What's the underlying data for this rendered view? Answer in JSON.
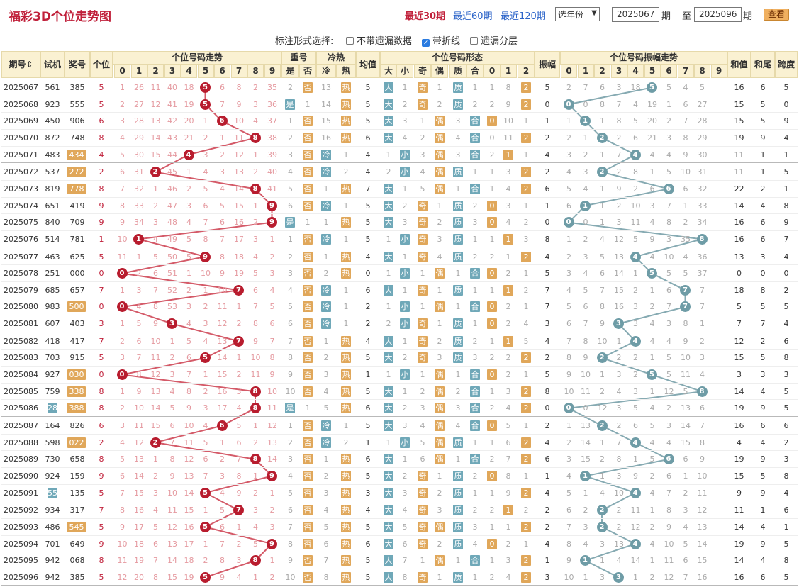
{
  "header": {
    "title": "福彩3D个位走势图",
    "links": [
      "最近30期",
      "最近60期",
      "最近120期"
    ],
    "year_select": "选年份",
    "from_issue": "2025067",
    "to_issue": "2025096",
    "qi": "期",
    "zhi": "至",
    "query_button": "查看"
  },
  "options": {
    "label": "标注形式选择:",
    "items": [
      "不带遗漏数据",
      "带折线",
      "遗漏分层"
    ],
    "checked": [
      false,
      true,
      false
    ]
  },
  "columns": {
    "issue": "期号",
    "trial": "试机",
    "prize": "奖号",
    "unit": "个位",
    "trend": "个位号码走势",
    "repeat": "重号",
    "repeat_sub": [
      "是",
      "否"
    ],
    "hotcold": "冷热",
    "hotcold_sub": [
      "冷",
      "热"
    ],
    "avg": "均值",
    "form": "个位号码形态",
    "form_sub": [
      "大",
      "小",
      "奇",
      "偶",
      "质",
      "合",
      "0",
      "1",
      "2"
    ],
    "amp": "振幅",
    "amp_trend": "个位号码振幅走势",
    "sum": "和值",
    "tail": "和尾",
    "span": "跨度",
    "digits": [
      "0",
      "1",
      "2",
      "3",
      "4",
      "5",
      "6",
      "7",
      "8",
      "9"
    ]
  },
  "rows": [
    [
      "2025067",
      "561",
      "385",
      5,
      "1 26 11 40 18 5 6 8 2 35",
      "2 否",
      "13 热",
      "5",
      "大 1 奇 1 质 1 1 8 2",
      "5",
      "2 7 6 3 18 5 4 5 26 1",
      "16",
      "6",
      "5",
      0,
      0
    ],
    [
      "2025068",
      "923",
      "555",
      5,
      "2 27 12 41 19 5 7 9 3 36",
      "是 1",
      "14 热",
      "5",
      "大 2 奇 2 质 2 2 9 2",
      "0",
      "0 8 7 4 19 1 6 27 2",
      "15",
      "5",
      "0",
      0,
      0
    ],
    [
      "2025069",
      "450",
      "906",
      6,
      "3 28 13 42 20 1 6 10 4 37",
      "1 否",
      "15 热",
      "5",
      "大 3 1 偶 3 合 0 10 1",
      "1",
      "1 1 8 5 20 2 7 28 3",
      "15",
      "5",
      "9",
      0,
      0
    ],
    [
      "2025070",
      "872",
      "748",
      8,
      "4 29 14 43 21 2 1 11 8 38",
      "2 否",
      "16 热",
      "6",
      "大 4 2 偶 4 合 0 11 2",
      "2",
      "2 1 2 6 21 3 8 29 4",
      "19",
      "9",
      "4",
      0,
      0
    ],
    [
      "2025071",
      "483",
      "434",
      4,
      "5 30 15 44 4 3 2 12 1 39",
      "3 否",
      "冷 1",
      "4",
      "1 小 3 偶 3 合 2 1 1",
      "4",
      "3 2 1 7 4 4 9 30 5",
      "11",
      "1",
      "1",
      2,
      0
    ],
    [
      "2025072",
      "537",
      "272",
      2,
      "6 31 2 45 1 4 3 13 2 40",
      "4 否",
      "冷 2",
      "4",
      "2 小 4 偶 质 1 1 3 2",
      "2",
      "4 3 2 8 1 5 10 31 6",
      "11",
      "1",
      "5",
      2,
      0
    ],
    [
      "2025073",
      "819",
      "778",
      8,
      "7 32 1 46 2 5 4 14 8 41",
      "5 否",
      "1 热",
      "7",
      "大 1 5 偶 1 合 1 4 2",
      "6",
      "5 4 1 9 2 6 6 32 7",
      "22",
      "2",
      "1",
      2,
      0
    ],
    [
      "2025074",
      "651",
      "419",
      9,
      "8 33 2 47 3 6 5 15 1 9",
      "6 否",
      "冷 1",
      "5",
      "大 2 奇 1 质 2 0 3 1",
      "1",
      "6 1 2 10 3 7 1 33 8",
      "14",
      "4",
      "8",
      0,
      0
    ],
    [
      "2025075",
      "840",
      "709",
      9,
      "9 34 3 48 4 7 6 16 2 9",
      "是 1",
      "1 热",
      "5",
      "大 3 奇 2 质 3 0 4 2",
      "0",
      "0 1 3 11 4 8 2 34 9",
      "16",
      "6",
      "9",
      0,
      0
    ],
    [
      "2025076",
      "514",
      "781",
      1,
      "10 1 4 49 5 8 7 17 3 1",
      "1 否",
      "冷 1",
      "5",
      "1 小 奇 3 质 1 1 1 3",
      "8",
      "1 2 4 12 5 9 3 35 8",
      "16",
      "6",
      "7",
      0,
      0
    ],
    [
      "2025077",
      "463",
      "625",
      5,
      "11 1 5 50 5 9 8 18 4 2",
      "2 否",
      "1 热",
      "4",
      "大 1 奇 4 质 2 2 1 2",
      "4",
      "2 3 5 13 4 10 4 36 1",
      "13",
      "3",
      "4",
      0,
      0
    ],
    [
      "2025078",
      "251",
      "000",
      0,
      "0 2 6 51 1 10 9 19 5 3",
      "3 否",
      "2 热",
      "0",
      "1 小 1 偶 1 合 0 2 1",
      "5",
      "3 4 6 14 1 5 5 37 2",
      "0",
      "0",
      "0",
      0,
      0
    ],
    [
      "2025079",
      "685",
      "657",
      7,
      "1 3 7 52 2 1 10 7 6 4",
      "4 否",
      "冷 1",
      "6",
      "大 1 奇 1 质 1 1 1 2",
      "7",
      "4 5 7 15 2 1 6 7 3",
      "18",
      "8",
      "2",
      0,
      0
    ],
    [
      "2025080",
      "983",
      "500",
      0,
      "0 4 8 53 3 2 11 1 7 5",
      "5 否",
      "冷 1",
      "2",
      "1 小 1 偶 1 合 0 2 1",
      "7",
      "5 6 8 16 3 2 7 7 4",
      "5",
      "5",
      "5",
      2,
      0
    ],
    [
      "2025081",
      "607",
      "403",
      3,
      "1 5 9 3 4 3 12 2 8 6",
      "6 否",
      "冷 1",
      "2",
      "2 小 奇 1 质 1 0 2 4",
      "3",
      "6 7 9 3 4 3 8 1 5",
      "7",
      "7",
      "4",
      0,
      0
    ],
    [
      "2025082",
      "418",
      "417",
      7,
      "2 6 10 1 5 4 13 7 9 7",
      "7 否",
      "1 热",
      "4",
      "大 1 奇 2 质 2 1 1 5",
      "4",
      "7 8 10 1 4 4 9 2 6",
      "12",
      "2",
      "6",
      0,
      0
    ],
    [
      "2025083",
      "703",
      "915",
      5,
      "3 7 11 2 6 5 14 1 10 8",
      "8 否",
      "2 热",
      "5",
      "大 2 奇 3 质 3 2 2 2",
      "2",
      "8 9 2 2 1 5 10 3 7",
      "15",
      "5",
      "8",
      0,
      0
    ],
    [
      "2025084",
      "927",
      "030",
      0,
      "0 8 12 3 7 1 15 2 11 9",
      "9 否",
      "3 热",
      "1",
      "1 小 1 偶 1 合 0 2 1",
      "5",
      "9 10 1 3 2 5 11 4 8",
      "3",
      "3",
      "3",
      2,
      0
    ],
    [
      "2025085",
      "759",
      "338",
      8,
      "1 9 13 4 8 2 16 3 8 10",
      "10 否",
      "4 热",
      "5",
      "大 1 2 偶 2 合 1 3 2",
      "8",
      "10 11 2 4 3 1 12 5 8",
      "14",
      "4",
      "5",
      2,
      0
    ],
    [
      "2025086",
      "288",
      "388",
      8,
      "2 10 14 5 9 3 17 4 8 11",
      "是 1",
      "5 热",
      "6",
      "大 2 3 偶 3 合 2 4 2",
      "0",
      "0 12 3 5 4 2 13 6 1",
      "19",
      "9",
      "5",
      2,
      1
    ],
    [
      "2025087",
      "164",
      "826",
      6,
      "3 11 15 6 10 4 6 5 1 12",
      "1 否",
      "冷 1",
      "5",
      "大 3 4 偶 4 合 0 5 1",
      "2",
      "1 13 2 6 5 3 14 7 2",
      "16",
      "6",
      "6",
      0,
      0
    ],
    [
      "2025088",
      "598",
      "022",
      2,
      "4 12 2 7 11 5 1 6 2 13",
      "2 否",
      "冷 2",
      "1",
      "1 小 5 偶 质 1 1 6 2",
      "4",
      "2 14 1 7 4 4 15 8 3",
      "4",
      "4",
      "2",
      2,
      0
    ],
    [
      "2025089",
      "730",
      "658",
      8,
      "5 13 1 8 12 6 2 7 8 14",
      "3 否",
      "1 热",
      "6",
      "大 1 6 偶 1 合 2 7 2",
      "6",
      "3 15 2 8 1 5 6 9 4",
      "19",
      "9",
      "3",
      0,
      0
    ],
    [
      "2025090",
      "924",
      "159",
      9,
      "6 14 2 9 13 7 3 8 1 9",
      "4 否",
      "2 热",
      "5",
      "大 2 奇 1 质 2 0 8 1",
      "1",
      "4 1 3 9 2 6 1 10 5",
      "15",
      "5",
      "8",
      0,
      0
    ],
    [
      "2025091",
      "553",
      "135",
      5,
      "7 15 3 10 14 5 4 9 2 1",
      "5 否",
      "3 热",
      "3",
      "大 3 奇 2 质 1 1 9 2",
      "4",
      "5 1 4 10 4 7 2 11 6",
      "9",
      "9",
      "4",
      0,
      1
    ],
    [
      "2025092",
      "934",
      "317",
      7,
      "8 16 4 11 15 1 5 7 3 2",
      "6 否",
      "4 热",
      "4",
      "大 4 奇 3 质 2 2 1 2",
      "2",
      "6 2 2 11 1 8 3 12 7",
      "11",
      "1",
      "6",
      0,
      0
    ],
    [
      "2025093",
      "486",
      "545",
      5,
      "9 17 5 12 16 5 6 1 4 3",
      "7 否",
      "5 热",
      "5",
      "大 5 奇 偶 质 3 1 1 2",
      "2",
      "7 3 2 12 2 9 4 13 8",
      "14",
      "4",
      "1",
      2,
      0
    ],
    [
      "2025094",
      "701",
      "649",
      9,
      "10 18 6 13 17 1 7 2 5 9",
      "8 否",
      "6 热",
      "6",
      "大 6 奇 2 质 4 0 2 1",
      "4",
      "8 4 3 13 4 10 5 14 9",
      "19",
      "9",
      "5",
      0,
      0
    ],
    [
      "2025095",
      "942",
      "068",
      8,
      "11 19 7 14 18 2 8 3 8 1",
      "9 否",
      "7 热",
      "5",
      "大 7 1 偶 1 合 1 3 2",
      "1",
      "9 1 4 14 1 11 6 15 10",
      "14",
      "4",
      "8",
      0,
      0
    ],
    [
      "2025096",
      "942",
      "385",
      5,
      "12 20 8 15 19 5 9 4 1 2",
      "10 否",
      "8 热",
      "5",
      "大 8 奇 1 质 1 2 4 2",
      "3",
      "10 1 3 1 2 12 7 16 11",
      "16",
      "6",
      "5",
      0,
      0
    ]
  ]
}
